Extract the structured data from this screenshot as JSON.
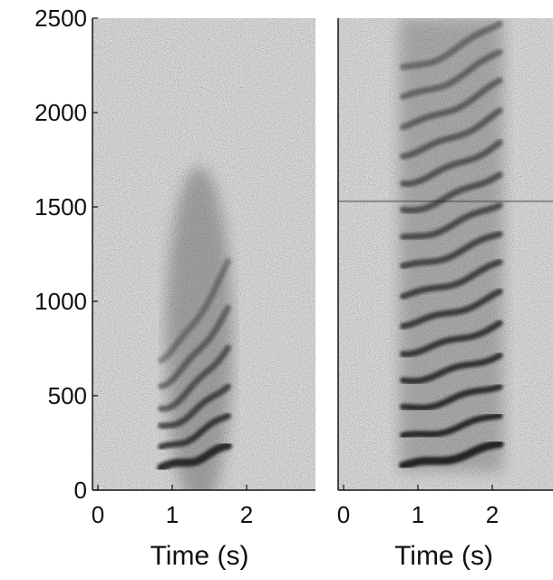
{
  "chart_data": [
    {
      "type": "heatmap",
      "subtype": "spectrogram",
      "xlabel": "Time (s)",
      "ylabel": "",
      "xlim": [
        0,
        3
      ],
      "ylim": [
        0,
        2500
      ],
      "xticks": [
        0,
        1,
        2
      ],
      "yticks": [
        0,
        500,
        1000,
        1500,
        2000,
        2500
      ],
      "grid": false,
      "call": {
        "start_s": 0.85,
        "end_s": 1.75,
        "harmonics_hz_start": [
          120,
          220,
          330,
          430,
          560,
          700
        ],
        "harmonics_hz_end": [
          230,
          400,
          560,
          760,
          960,
          1200
        ]
      }
    },
    {
      "type": "heatmap",
      "subtype": "spectrogram",
      "xlabel": "Time (s)",
      "ylabel": "",
      "xlim": [
        0,
        3
      ],
      "ylim": [
        0,
        2500
      ],
      "xticks": [
        0,
        1,
        2
      ],
      "yticks": [],
      "grid": false,
      "call": {
        "start_s": 0.8,
        "end_s": 2.1,
        "harmonics_hz_start": [
          130,
          280,
          430,
          580,
          730,
          880,
          1030,
          1180,
          1330,
          1480,
          1630,
          1780,
          1930,
          2080,
          2230
        ],
        "harmonics_hz_end": [
          240,
          400,
          560,
          720,
          880,
          1040,
          1200,
          1360,
          1520,
          1680,
          1840,
          2000,
          2160,
          2320,
          2480
        ]
      },
      "noise_band_hz": 1530
    }
  ]
}
